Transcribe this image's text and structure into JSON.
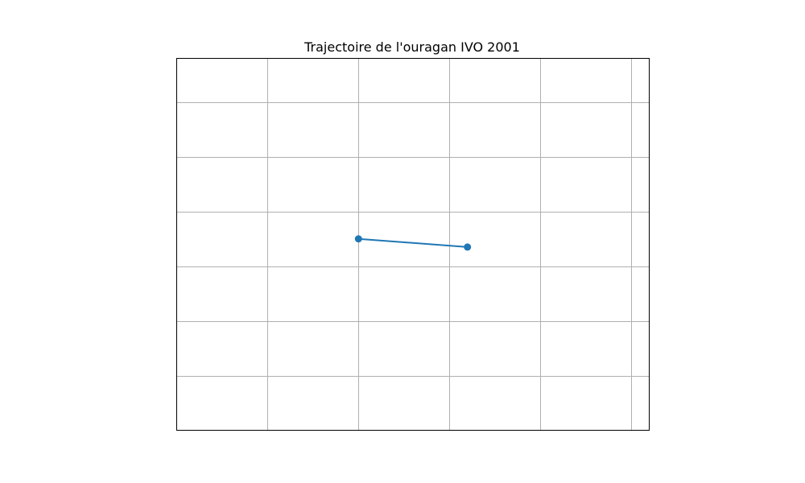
{
  "chart_data": {
    "type": "line",
    "title": "Trajectoire de l'ouragan IVO 2001",
    "xlabel": "",
    "ylabel": "",
    "xlim": [
      -114.0,
      -108.8
    ],
    "ylim": [
      13.0,
      19.8
    ],
    "x_gridlines": [
      -113.0,
      -112.0,
      -111.0,
      -110.0,
      -109.0
    ],
    "y_gridlines": [
      14.0,
      15.0,
      16.0,
      17.0,
      18.0,
      19.0
    ],
    "grid": true,
    "series": [
      {
        "x": [
          -112.0,
          -110.8
        ],
        "y": [
          16.5,
          16.35
        ],
        "color": "#1f77b4",
        "marker": "circle"
      }
    ]
  }
}
